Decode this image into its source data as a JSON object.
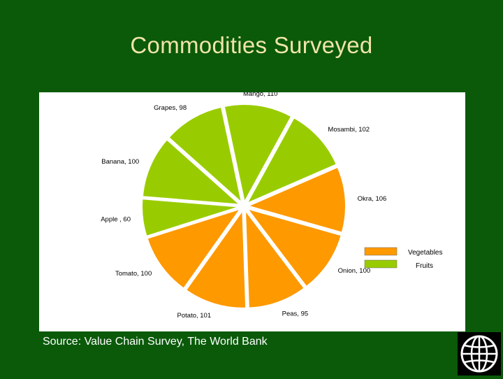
{
  "slide": {
    "title": "Commodities Surveyed",
    "source": "Source: Value Chain Survey, The World Bank"
  },
  "colors": {
    "background": "#0a5a0a",
    "title": "#f0e4a8",
    "vegetables": "#ff9900",
    "fruits": "#99cc00"
  },
  "chart_data": {
    "type": "pie",
    "title": "",
    "slices": [
      {
        "label": "Mango, 110",
        "name": "Mango",
        "value": 110,
        "group": "Fruits"
      },
      {
        "label": "Mosambi, 102",
        "name": "Mosambi",
        "value": 102,
        "group": "Fruits"
      },
      {
        "label": "Okra, 106",
        "name": "Okra",
        "value": 106,
        "group": "Vegetables"
      },
      {
        "label": "Onion, 100",
        "name": "Onion",
        "value": 100,
        "group": "Vegetables"
      },
      {
        "label": "Peas, 95",
        "name": "Peas",
        "value": 95,
        "group": "Vegetables"
      },
      {
        "label": "Potato, 101",
        "name": "Potato",
        "value": 101,
        "group": "Vegetables"
      },
      {
        "label": "Tomato, 100",
        "name": "Tomato",
        "value": 100,
        "group": "Vegetables"
      },
      {
        "label": "Apple , 60",
        "name": "Apple",
        "value": 60,
        "group": "Fruits"
      },
      {
        "label": "Banana, 100",
        "name": "Banana",
        "value": 100,
        "group": "Fruits"
      },
      {
        "label": "Grapes, 98",
        "name": "Grapes",
        "value": 98,
        "group": "Fruits"
      }
    ],
    "legend": {
      "placement": "right",
      "entries": [
        {
          "label": "Vegetables",
          "color": "#ff9900"
        },
        {
          "label": "Fruits",
          "color": "#99cc00"
        }
      ]
    }
  },
  "logo": {
    "icon": "world-bank-globe-icon"
  }
}
